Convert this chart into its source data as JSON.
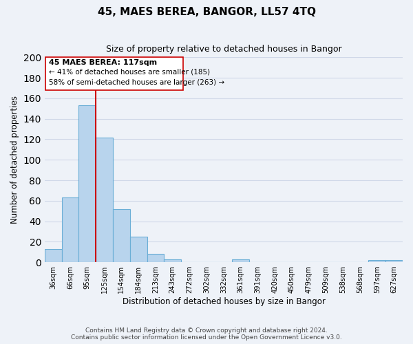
{
  "title": "45, MAES BEREA, BANGOR, LL57 4TQ",
  "subtitle": "Size of property relative to detached houses in Bangor",
  "xlabel": "Distribution of detached houses by size in Bangor",
  "ylabel": "Number of detached properties",
  "footer_line1": "Contains HM Land Registry data © Crown copyright and database right 2024.",
  "footer_line2": "Contains public sector information licensed under the Open Government Licence v3.0.",
  "bar_labels": [
    "36sqm",
    "66sqm",
    "95sqm",
    "125sqm",
    "154sqm",
    "184sqm",
    "213sqm",
    "243sqm",
    "272sqm",
    "302sqm",
    "332sqm",
    "361sqm",
    "391sqm",
    "420sqm",
    "450sqm",
    "479sqm",
    "509sqm",
    "538sqm",
    "568sqm",
    "597sqm",
    "627sqm"
  ],
  "bar_values": [
    13,
    63,
    153,
    122,
    52,
    25,
    8,
    3,
    0,
    0,
    0,
    3,
    0,
    0,
    0,
    0,
    0,
    0,
    0,
    2,
    2
  ],
  "bar_color": "#b8d4ed",
  "bar_edge_color": "#6aaed6",
  "vline_color": "#cc0000",
  "vline_pos": 2.5,
  "annotation_title": "45 MAES BEREA: 117sqm",
  "annotation_line1": "← 41% of detached houses are smaller (185)",
  "annotation_line2": "58% of semi-detached houses are larger (263) →",
  "annotation_box_color": "#ffffff",
  "annotation_box_edge_color": "#cc0000",
  "ylim": [
    0,
    200
  ],
  "yticks": [
    0,
    20,
    40,
    60,
    80,
    100,
    120,
    140,
    160,
    180,
    200
  ],
  "grid_color": "#d0d8e8",
  "bg_color": "#eef2f8"
}
